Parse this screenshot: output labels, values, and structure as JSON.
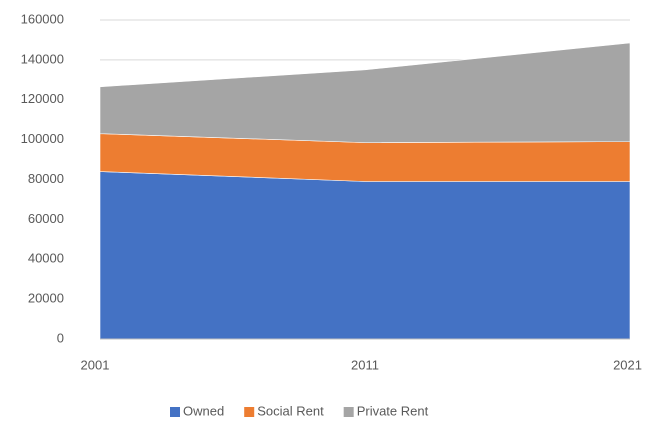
{
  "chart_data": {
    "type": "stacked_area",
    "categories": [
      "2001",
      "2011",
      "2021"
    ],
    "series": [
      {
        "name": "Owned",
        "color": "#4472c4",
        "values": [
          84000,
          79000,
          79000
        ]
      },
      {
        "name": "Social Rent",
        "color": "#ed7d31",
        "values": [
          19000,
          19500,
          20000
        ]
      },
      {
        "name": "Private Rent",
        "color": "#a5a5a5",
        "values": [
          23500,
          36500,
          49500
        ]
      }
    ],
    "ylim": [
      0,
      160000
    ],
    "yticks": [
      0,
      20000,
      40000,
      60000,
      80000,
      100000,
      120000,
      140000,
      160000
    ],
    "grid": true,
    "legend": "bottom"
  }
}
